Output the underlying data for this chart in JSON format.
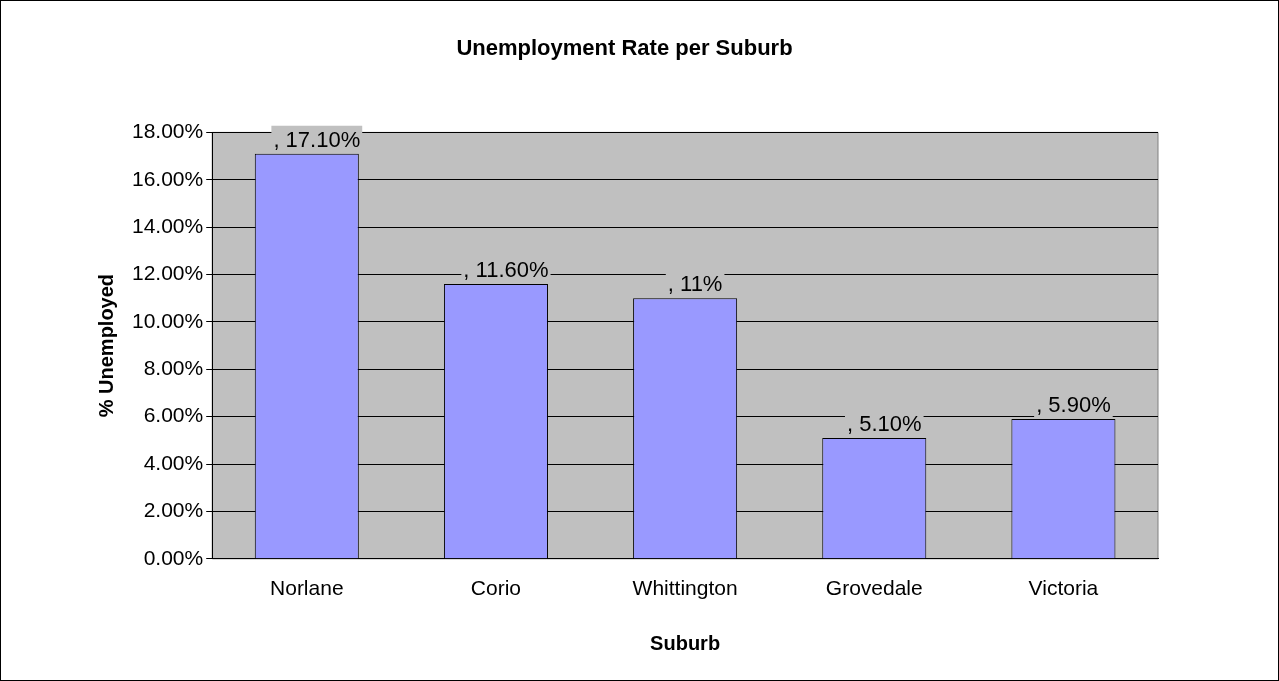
{
  "chart_data": {
    "type": "bar",
    "title": "Unemployment Rate per Suburb",
    "xlabel": "Suburb",
    "ylabel": "% Unemployed",
    "categories": [
      "Norlane",
      "Corio",
      "Whittington",
      "Grovedale",
      "Victoria"
    ],
    "values": [
      17.1,
      11.6,
      11,
      5.1,
      5.9
    ],
    "value_labels": [
      ", 17.10%",
      ", 11.60%",
      ", 11%",
      ", 5.10%",
      ", 5.90%"
    ],
    "color": "#9999ff",
    "ylim": [
      0,
      18
    ],
    "yticks": [
      {
        "value": 0,
        "label": "0.00%"
      },
      {
        "value": 2,
        "label": "2.00%"
      },
      {
        "value": 4,
        "label": "4.00%"
      },
      {
        "value": 6,
        "label": "6.00%"
      },
      {
        "value": 8,
        "label": "8.00%"
      },
      {
        "value": 10,
        "label": "10.00%"
      },
      {
        "value": 12,
        "label": "12.00%"
      },
      {
        "value": 14,
        "label": "14.00%"
      },
      {
        "value": 16,
        "label": "16.00%"
      },
      {
        "value": 18,
        "label": "18.00%"
      }
    ],
    "grid": "y",
    "legend": false
  }
}
